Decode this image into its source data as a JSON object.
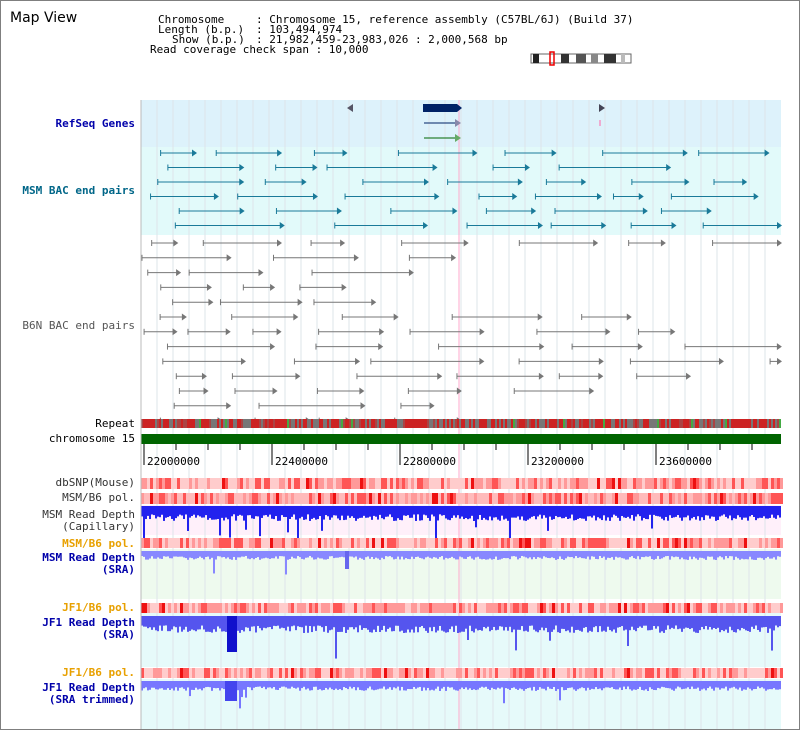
{
  "page": {
    "title": "Map View"
  },
  "info": {
    "chromosome_key": "Chromosome",
    "chromosome_val": ": Chromosome 15, reference assembly (C57BL/6J) (Build 37)",
    "length_key": "Length (b.p.)",
    "length_val": ": 103,494,974",
    "show_key": "Show (b.p.)",
    "show_val": ": 21,982,459-23,983,026 : 2,000,568 bp",
    "coverage_text": "Read coverage check span : 10,000"
  },
  "tracks": {
    "refseq": "RefSeq Genes",
    "msm_bac": "MSM BAC end pairs",
    "b6n_bac": "B6N BAC end pairs",
    "repeat": "Repeat",
    "chromosome": "chromosome 15",
    "dbsnp": "dbSNP(Mouse)",
    "msm_b6_pol_1": "MSM/B6 pol.",
    "msm_depth_cap_1": "MSM Read Depth",
    "msm_depth_cap_2": "(Capillary)",
    "msm_b6_pol_2": "MSM/B6 pol.",
    "msm_depth_sra_1": "MSM Read Depth",
    "msm_depth_sra_2": "(SRA)",
    "jf1_b6_pol_1": "JF1/B6 pol.",
    "jf1_depth_sra_1": "JF1 Read Depth",
    "jf1_depth_sra_2": "(SRA)",
    "jf1_b6_pol_2": "JF1/B6 pol.",
    "jf1_depth_trim_1": "JF1 Read Depth",
    "jf1_depth_trim_2": "(SRA trimmed)"
  },
  "ruler": {
    "ticks": [
      "22000000",
      "22400000",
      "22800000",
      "23200000",
      "23600000"
    ]
  },
  "colors": {
    "navy": "#0000aa",
    "teal": "#006688",
    "orange": "#e8a000",
    "chromosome_bar": "#006400",
    "refseq_bg": "#ddf2fb",
    "msm_bg": "#e2fafa",
    "depth_blue": "#3333ee",
    "depth_light": "#8888ff"
  }
}
